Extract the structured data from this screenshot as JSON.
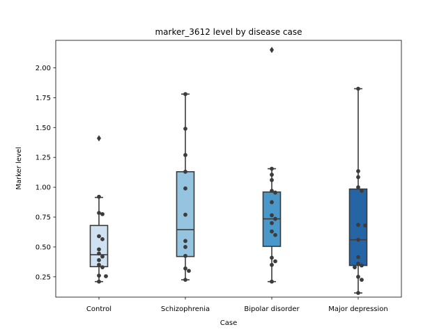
{
  "chart_data": {
    "type": "box",
    "title": "marker_3612 level by disease case",
    "xlabel": "Case",
    "ylabel": "Marker level",
    "ylim": [
      0.08,
      2.23
    ],
    "yticks": [
      "0.25",
      "0.50",
      "0.75",
      "1.00",
      "1.25",
      "1.50",
      "1.75",
      "2.00"
    ],
    "grid": false,
    "categories": [
      "Control",
      "Schizophrenia",
      "Bipolar disorder",
      "Major depression"
    ],
    "colors": [
      "#d0e1f2",
      "#94c4df",
      "#4a98c9",
      "#2565a5"
    ],
    "boxes": [
      {
        "q1": 0.335,
        "median": 0.435,
        "q3": 0.68,
        "whisker_low": 0.21,
        "whisker_high": 0.915,
        "outliers": [
          1.41
        ]
      },
      {
        "q1": 0.42,
        "median": 0.645,
        "q3": 1.13,
        "whisker_low": 0.225,
        "whisker_high": 1.78,
        "outliers": []
      },
      {
        "q1": 0.505,
        "median": 0.735,
        "q3": 0.96,
        "whisker_low": 0.21,
        "whisker_high": 1.155,
        "outliers": [
          2.15
        ]
      },
      {
        "q1": 0.345,
        "median": 0.56,
        "q3": 0.985,
        "whisker_low": 0.115,
        "whisker_high": 1.825,
        "outliers": []
      }
    ],
    "points": [
      [
        0.92,
        0.785,
        0.775,
        0.59,
        0.565,
        0.48,
        0.445,
        0.42,
        0.39,
        0.35,
        0.33,
        0.26,
        0.255,
        0.21
      ],
      [
        1.78,
        1.49,
        1.27,
        1.13,
        0.99,
        0.77,
        0.55,
        0.5,
        0.425,
        0.32,
        0.3,
        0.225
      ],
      [
        1.155,
        1.105,
        1.06,
        0.97,
        0.955,
        0.875,
        0.765,
        0.735,
        0.7,
        0.63,
        0.6,
        0.41,
        0.38,
        0.35,
        0.21
      ],
      [
        1.825,
        1.135,
        1.085,
        1.0,
        0.97,
        0.685,
        0.68,
        0.56,
        0.415,
        0.36,
        0.345,
        0.33,
        0.25,
        0.225,
        0.115
      ]
    ]
  }
}
